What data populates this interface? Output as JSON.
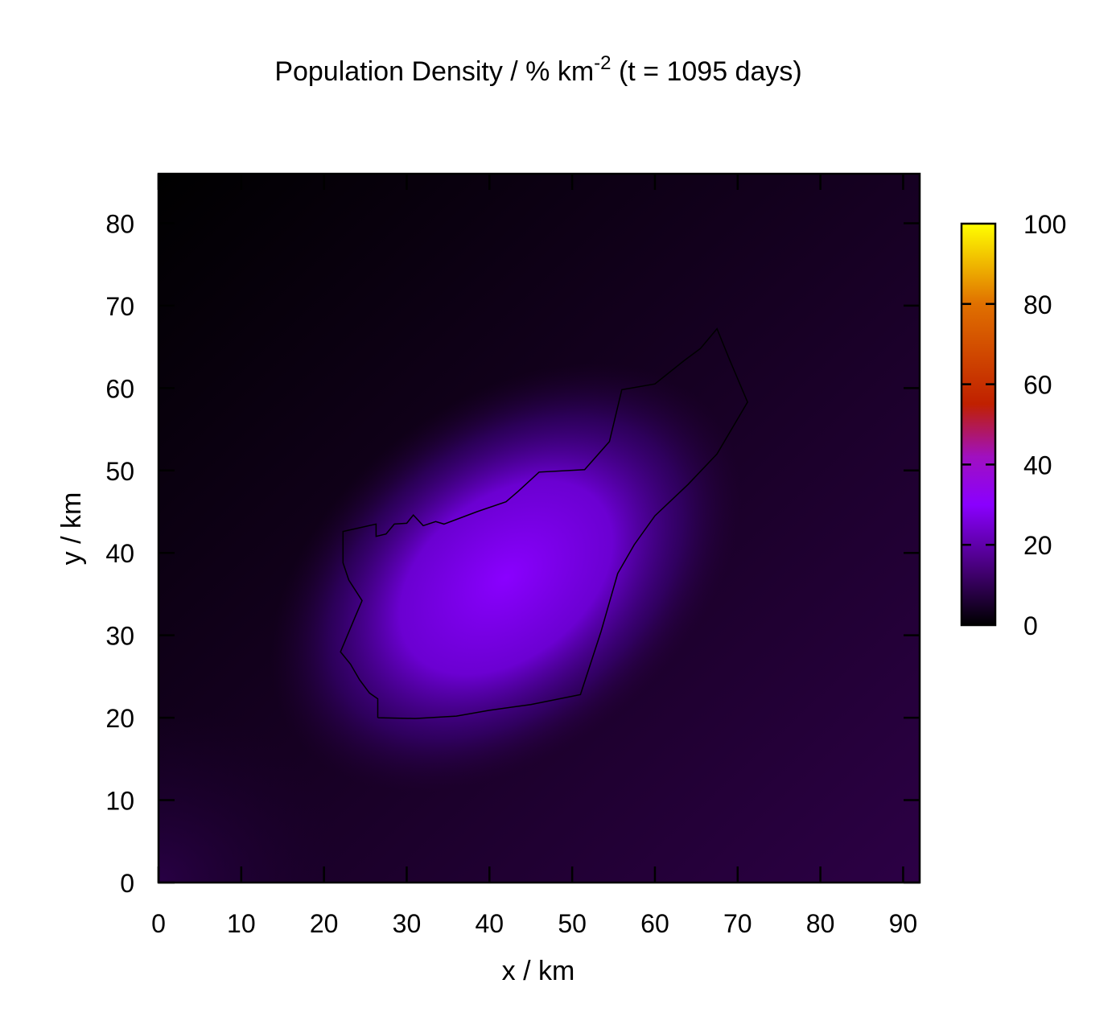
{
  "chart_data": {
    "type": "heatmap",
    "title": {
      "prefix": "Population Density / % km",
      "superscript": "-2",
      "suffix": " (t = 1095 days)"
    },
    "xlabel": "x / km",
    "ylabel": "y / km",
    "xlim": [
      0,
      92
    ],
    "ylim": [
      0,
      86
    ],
    "xticks": [
      "0",
      "10",
      "20",
      "30",
      "40",
      "50",
      "60",
      "70",
      "80",
      "90"
    ],
    "yticks": [
      "0",
      "10",
      "20",
      "30",
      "40",
      "50",
      "60",
      "70",
      "80"
    ],
    "colorbar": {
      "range": [
        0,
        100
      ],
      "ticks": [
        "0",
        "20",
        "40",
        "60",
        "80",
        "100"
      ],
      "palette": [
        "#000000",
        "#4a0080",
        "#8a00ff",
        "#a010c0",
        "#c02000",
        "#e07000",
        "#ffff00"
      ]
    },
    "density_peak": {
      "location_km": [
        37,
        34
      ],
      "value": 25,
      "spread": "elongated along the diagonal from bottom-left to top-right"
    },
    "boundary_outline_km": [
      [
        26.5,
        20
      ],
      [
        31,
        19.9
      ],
      [
        36,
        20.2
      ],
      [
        40,
        20.9
      ],
      [
        45,
        21.6
      ],
      [
        51,
        22.8
      ],
      [
        53.5,
        30.5
      ],
      [
        55.5,
        37.5
      ],
      [
        57.5,
        41
      ],
      [
        60,
        44.5
      ],
      [
        64,
        48.3
      ],
      [
        67.5,
        52
      ],
      [
        71.2,
        58.3
      ],
      [
        69,
        63.5
      ],
      [
        67.5,
        67.2
      ],
      [
        65.5,
        64.8
      ],
      [
        63.5,
        63.3
      ],
      [
        60,
        60.5
      ],
      [
        56,
        59.8
      ],
      [
        54.5,
        53.5
      ],
      [
        51.5,
        50.1
      ],
      [
        46,
        49.8
      ],
      [
        43.5,
        47.5
      ],
      [
        42,
        46.2
      ],
      [
        38.5,
        45
      ],
      [
        34.5,
        43.5
      ],
      [
        33.5,
        43.8
      ],
      [
        32,
        43.3
      ],
      [
        30.8,
        44.6
      ],
      [
        30,
        43.6
      ],
      [
        28.5,
        43.5
      ],
      [
        27.5,
        42.3
      ],
      [
        26.3,
        42
      ],
      [
        26.3,
        43.5
      ],
      [
        22.3,
        42.6
      ],
      [
        22.3,
        38.8
      ],
      [
        23,
        36.7
      ],
      [
        24.6,
        34.2
      ],
      [
        23.8,
        32.3
      ],
      [
        22,
        28
      ],
      [
        23.2,
        26.5
      ],
      [
        24.3,
        24.6
      ],
      [
        25.5,
        23
      ],
      [
        26.5,
        22.3
      ],
      [
        26.5,
        20
      ]
    ]
  }
}
